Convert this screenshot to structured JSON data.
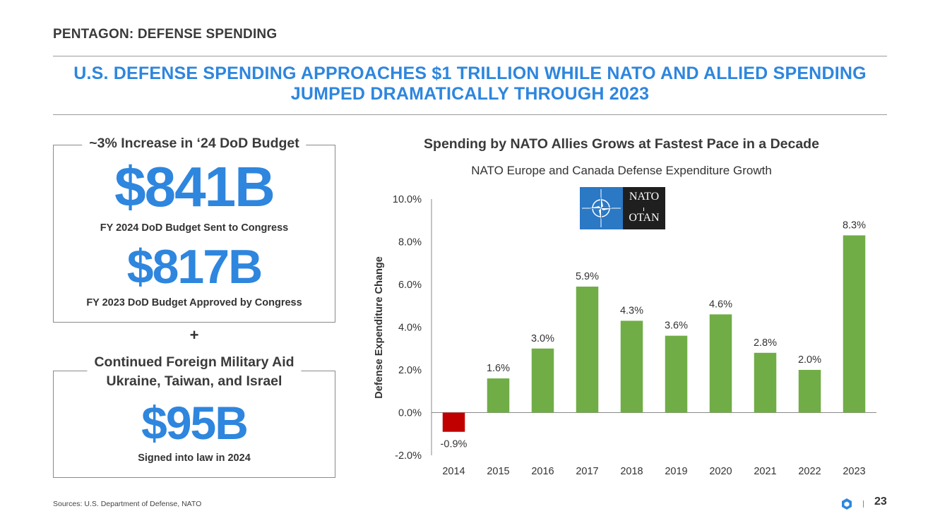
{
  "header": {
    "section_title": "PENTAGON: DEFENSE SPENDING",
    "headline_line1": "U.S. DEFENSE SPENDING APPROACHES $1 TRILLION WHILE NATO AND ALLIED SPENDING",
    "headline_line2": "JUMPED DRAMATICALLY THROUGH 2023"
  },
  "dod_box": {
    "legend": "~3% Increase in ‘24 DoD Budget",
    "value1": "$841B",
    "caption1": "FY 2024 DoD Budget Sent to Congress",
    "value2": "$817B",
    "caption2": "FY 2023 DoD Budget Approved by Congress"
  },
  "plus_sign": "+",
  "aid_box": {
    "legend_line1": "Continued Foreign Military Aid",
    "legend_line2": "Ukraine, Taiwan, and Israel",
    "value": "$95B",
    "caption": "Signed into law in 2024"
  },
  "logo": {
    "line1": "NATO",
    "line2": "OTAN"
  },
  "colors": {
    "accent": "#2e86de",
    "bar_positive": "#70ad47",
    "bar_negative": "#c00000"
  },
  "chart_data": {
    "type": "bar",
    "title": "Spending by NATO Allies Grows at Fastest Pace in a Decade",
    "subtitle": "NATO Europe and Canada Defense Expenditure Growth",
    "xlabel": "",
    "ylabel": "Defense Expenditure Change",
    "categories": [
      "2014",
      "2015",
      "2016",
      "2017",
      "2018",
      "2019",
      "2020",
      "2021",
      "2022",
      "2023"
    ],
    "values": [
      -0.9,
      1.6,
      3.0,
      5.9,
      4.3,
      3.6,
      4.6,
      2.8,
      2.0,
      8.3
    ],
    "value_labels": [
      "-0.9%",
      "1.6%",
      "3.0%",
      "5.9%",
      "4.3%",
      "3.6%",
      "4.6%",
      "2.8%",
      "2.0%",
      "8.3%"
    ],
    "ylim": [
      -2,
      10
    ],
    "yticks": [
      -2,
      0,
      2,
      4,
      6,
      8,
      10
    ],
    "ytick_labels": [
      "-2.0%",
      "0.0%",
      "2.0%",
      "4.0%",
      "6.0%",
      "8.0%",
      "10.0%"
    ],
    "grid": false,
    "legend": "none"
  },
  "footer": {
    "sources": "Sources: U.S. Department of Defense, NATO",
    "page_number": "23"
  }
}
